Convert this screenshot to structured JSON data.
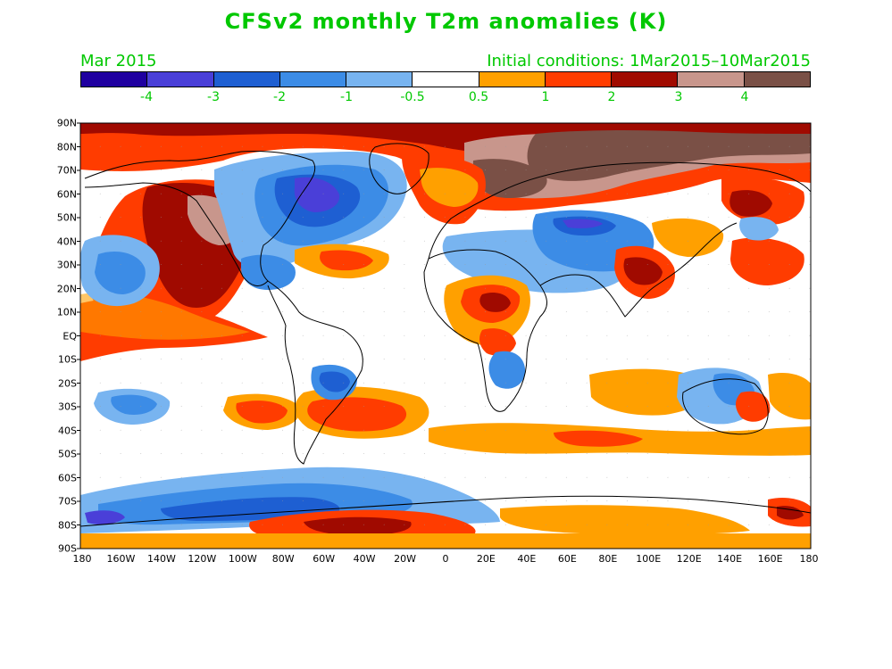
{
  "title": "CFSv2 monthly T2m anomalies (K)",
  "subtitle_left": "Mar 2015",
  "subtitle_right": "Initial conditions: 1Mar2015–10Mar2015",
  "colorbar": {
    "colors": [
      "#1f00a0",
      "#4a3fd8",
      "#1e5fd2",
      "#3c8ce6",
      "#78b4f0",
      "#ffffff",
      "#ffa000",
      "#ff3c00",
      "#a00a00",
      "#c8968c",
      "#7a5046"
    ],
    "labels": [
      "-4",
      "-3",
      "-2",
      "-1",
      "-0.5",
      "0.5",
      "1",
      "2",
      "3",
      "4"
    ]
  },
  "lat_labels": [
    "90N",
    "80N",
    "70N",
    "60N",
    "50N",
    "40N",
    "30N",
    "20N",
    "10N",
    "EQ",
    "10S",
    "20S",
    "30S",
    "40S",
    "50S",
    "60S",
    "70S",
    "80S",
    "90S"
  ],
  "lon_labels": [
    "180",
    "160W",
    "140W",
    "120W",
    "100W",
    "80W",
    "60W",
    "40W",
    "20W",
    "0",
    "20E",
    "40E",
    "60E",
    "80E",
    "100E",
    "120E",
    "140E",
    "160E",
    "180"
  ],
  "colors": {
    "title_green": "#00c800",
    "cold_deep": "#1f00a0",
    "cold_strong": "#4a3fd8",
    "cold_mod": "#1e5fd2",
    "cold": "#3c8ce6",
    "cool": "#78b4f0",
    "warm_slight": "#ffa000",
    "warm": "#ff3c00",
    "hot": "#a00a00",
    "very_hot": "#c8968c",
    "extreme_hot": "#7a5046"
  }
}
